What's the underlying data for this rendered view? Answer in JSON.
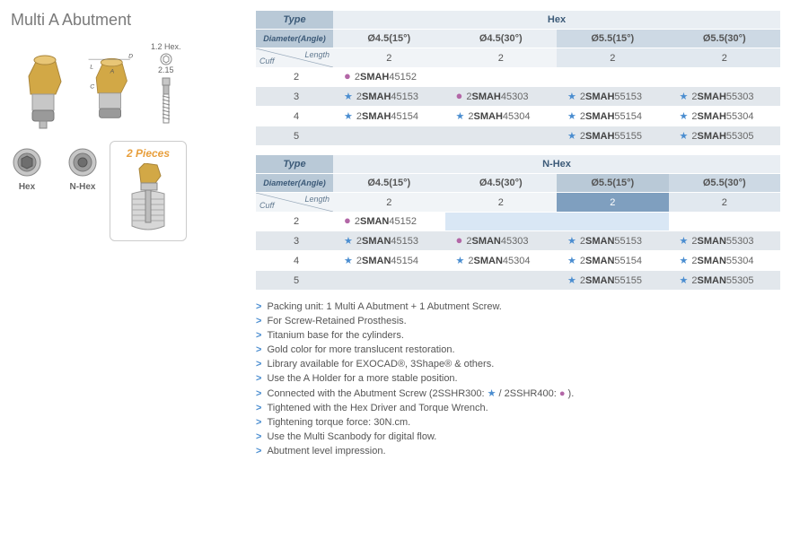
{
  "title": "Multi A Abutment",
  "dimensions": {
    "hex_label": "1.2 Hex.",
    "width_label": "2.15"
  },
  "nuts": {
    "hex": "Hex",
    "nhex": "N-Hex"
  },
  "pieces_label": "2 Pieces",
  "colors": {
    "header_bg": "#b9c9d7",
    "header_text": "#3c5a78",
    "sub_bg": "#e9eef3",
    "row_alt": "#e2e7ec",
    "star": "#4a8dd0",
    "dot": "#b367a7",
    "gold": "#d2a846"
  },
  "table_hex": {
    "type_label": "Type",
    "type_value": "Hex",
    "diam_label": "Diameter(Angle)",
    "length_label": "Length",
    "cuff_label": "Cuff",
    "columns": [
      "Ø4.5(15°)",
      "Ø4.5(30°)",
      "Ø5.5(15°)",
      "Ø5.5(30°)"
    ],
    "length_row": [
      "2",
      "2",
      "2",
      "2"
    ],
    "rows": [
      {
        "cuff": "2",
        "cells": [
          {
            "marker": "dot",
            "prefix": "2",
            "bold": "SMAH",
            "suffix": "45152"
          },
          null,
          null,
          null
        ]
      },
      {
        "cuff": "3",
        "cells": [
          {
            "marker": "star",
            "prefix": "2",
            "bold": "SMAH",
            "suffix": "45153"
          },
          {
            "marker": "dot",
            "prefix": "2",
            "bold": "SMAH",
            "suffix": "45303"
          },
          {
            "marker": "star",
            "prefix": "2",
            "bold": "SMAH",
            "suffix": "55153"
          },
          {
            "marker": "star",
            "prefix": "2",
            "bold": "SMAH",
            "suffix": "55303"
          }
        ]
      },
      {
        "cuff": "4",
        "cells": [
          {
            "marker": "star",
            "prefix": "2",
            "bold": "SMAH",
            "suffix": "45154"
          },
          {
            "marker": "star",
            "prefix": "2",
            "bold": "SMAH",
            "suffix": "45304"
          },
          {
            "marker": "star",
            "prefix": "2",
            "bold": "SMAH",
            "suffix": "55154"
          },
          {
            "marker": "star",
            "prefix": "2",
            "bold": "SMAH",
            "suffix": "55304"
          }
        ]
      },
      {
        "cuff": "5",
        "cells": [
          null,
          null,
          {
            "marker": "star",
            "prefix": "2",
            "bold": "SMAH",
            "suffix": "55155"
          },
          {
            "marker": "star",
            "prefix": "2",
            "bold": "SMAH",
            "suffix": "55305"
          }
        ]
      }
    ]
  },
  "table_nhex": {
    "type_label": "Type",
    "type_value": "N-Hex",
    "diam_label": "Diameter(Angle)",
    "length_label": "Length",
    "cuff_label": "Cuff",
    "columns": [
      "Ø4.5(15°)",
      "Ø4.5(30°)",
      "Ø5.5(15°)",
      "Ø5.5(30°)"
    ],
    "length_row": [
      "2",
      "2",
      "2",
      "2"
    ],
    "length_row_styles": [
      "",
      "",
      "hl",
      ""
    ],
    "rows": [
      {
        "cuff": "2",
        "cells": [
          {
            "marker": "dot",
            "prefix": "2",
            "bold": "SMAN",
            "suffix": "45152"
          },
          {
            "hl": true
          },
          {
            "hl": true
          },
          null
        ]
      },
      {
        "cuff": "3",
        "cells": [
          {
            "marker": "star",
            "prefix": "2",
            "bold": "SMAN",
            "suffix": "45153"
          },
          {
            "marker": "dot",
            "prefix": "2",
            "bold": "SMAN",
            "suffix": "45303"
          },
          {
            "marker": "star",
            "prefix": "2",
            "bold": "SMAN",
            "suffix": "55153"
          },
          {
            "marker": "star",
            "prefix": "2",
            "bold": "SMAN",
            "suffix": "55303"
          }
        ]
      },
      {
        "cuff": "4",
        "cells": [
          {
            "marker": "star",
            "prefix": "2",
            "bold": "SMAN",
            "suffix": "45154"
          },
          {
            "marker": "star",
            "prefix": "2",
            "bold": "SMAN",
            "suffix": "45304"
          },
          {
            "marker": "star",
            "prefix": "2",
            "bold": "SMAN",
            "suffix": "55154"
          },
          {
            "marker": "star",
            "prefix": "2",
            "bold": "SMAN",
            "suffix": "55304"
          }
        ]
      },
      {
        "cuff": "5",
        "cells": [
          null,
          null,
          {
            "marker": "star",
            "prefix": "2",
            "bold": "SMAN",
            "suffix": "55155"
          },
          {
            "marker": "star",
            "prefix": "2",
            "bold": "SMAN",
            "suffix": "55305"
          }
        ]
      }
    ]
  },
  "notes": [
    "Packing unit: 1 Multi A Abutment + 1 Abutment Screw.",
    "For Screw-Retained Prosthesis.",
    "Titanium base for the cylinders.",
    "Gold color for more translucent restoration.",
    "Library available for EXOCAD®, 3Shape® & others.",
    "Use the A Holder for a more stable position.",
    "Connected with the Abutment Screw (2SSHR300: ★ / 2SSHR400: ● ).",
    "Tightened with the Hex Driver and Torque Wrench.",
    "Tightening torque force: 30N.cm.",
    "Use the Multi Scanbody for digital flow.",
    "Abutment level impression."
  ]
}
